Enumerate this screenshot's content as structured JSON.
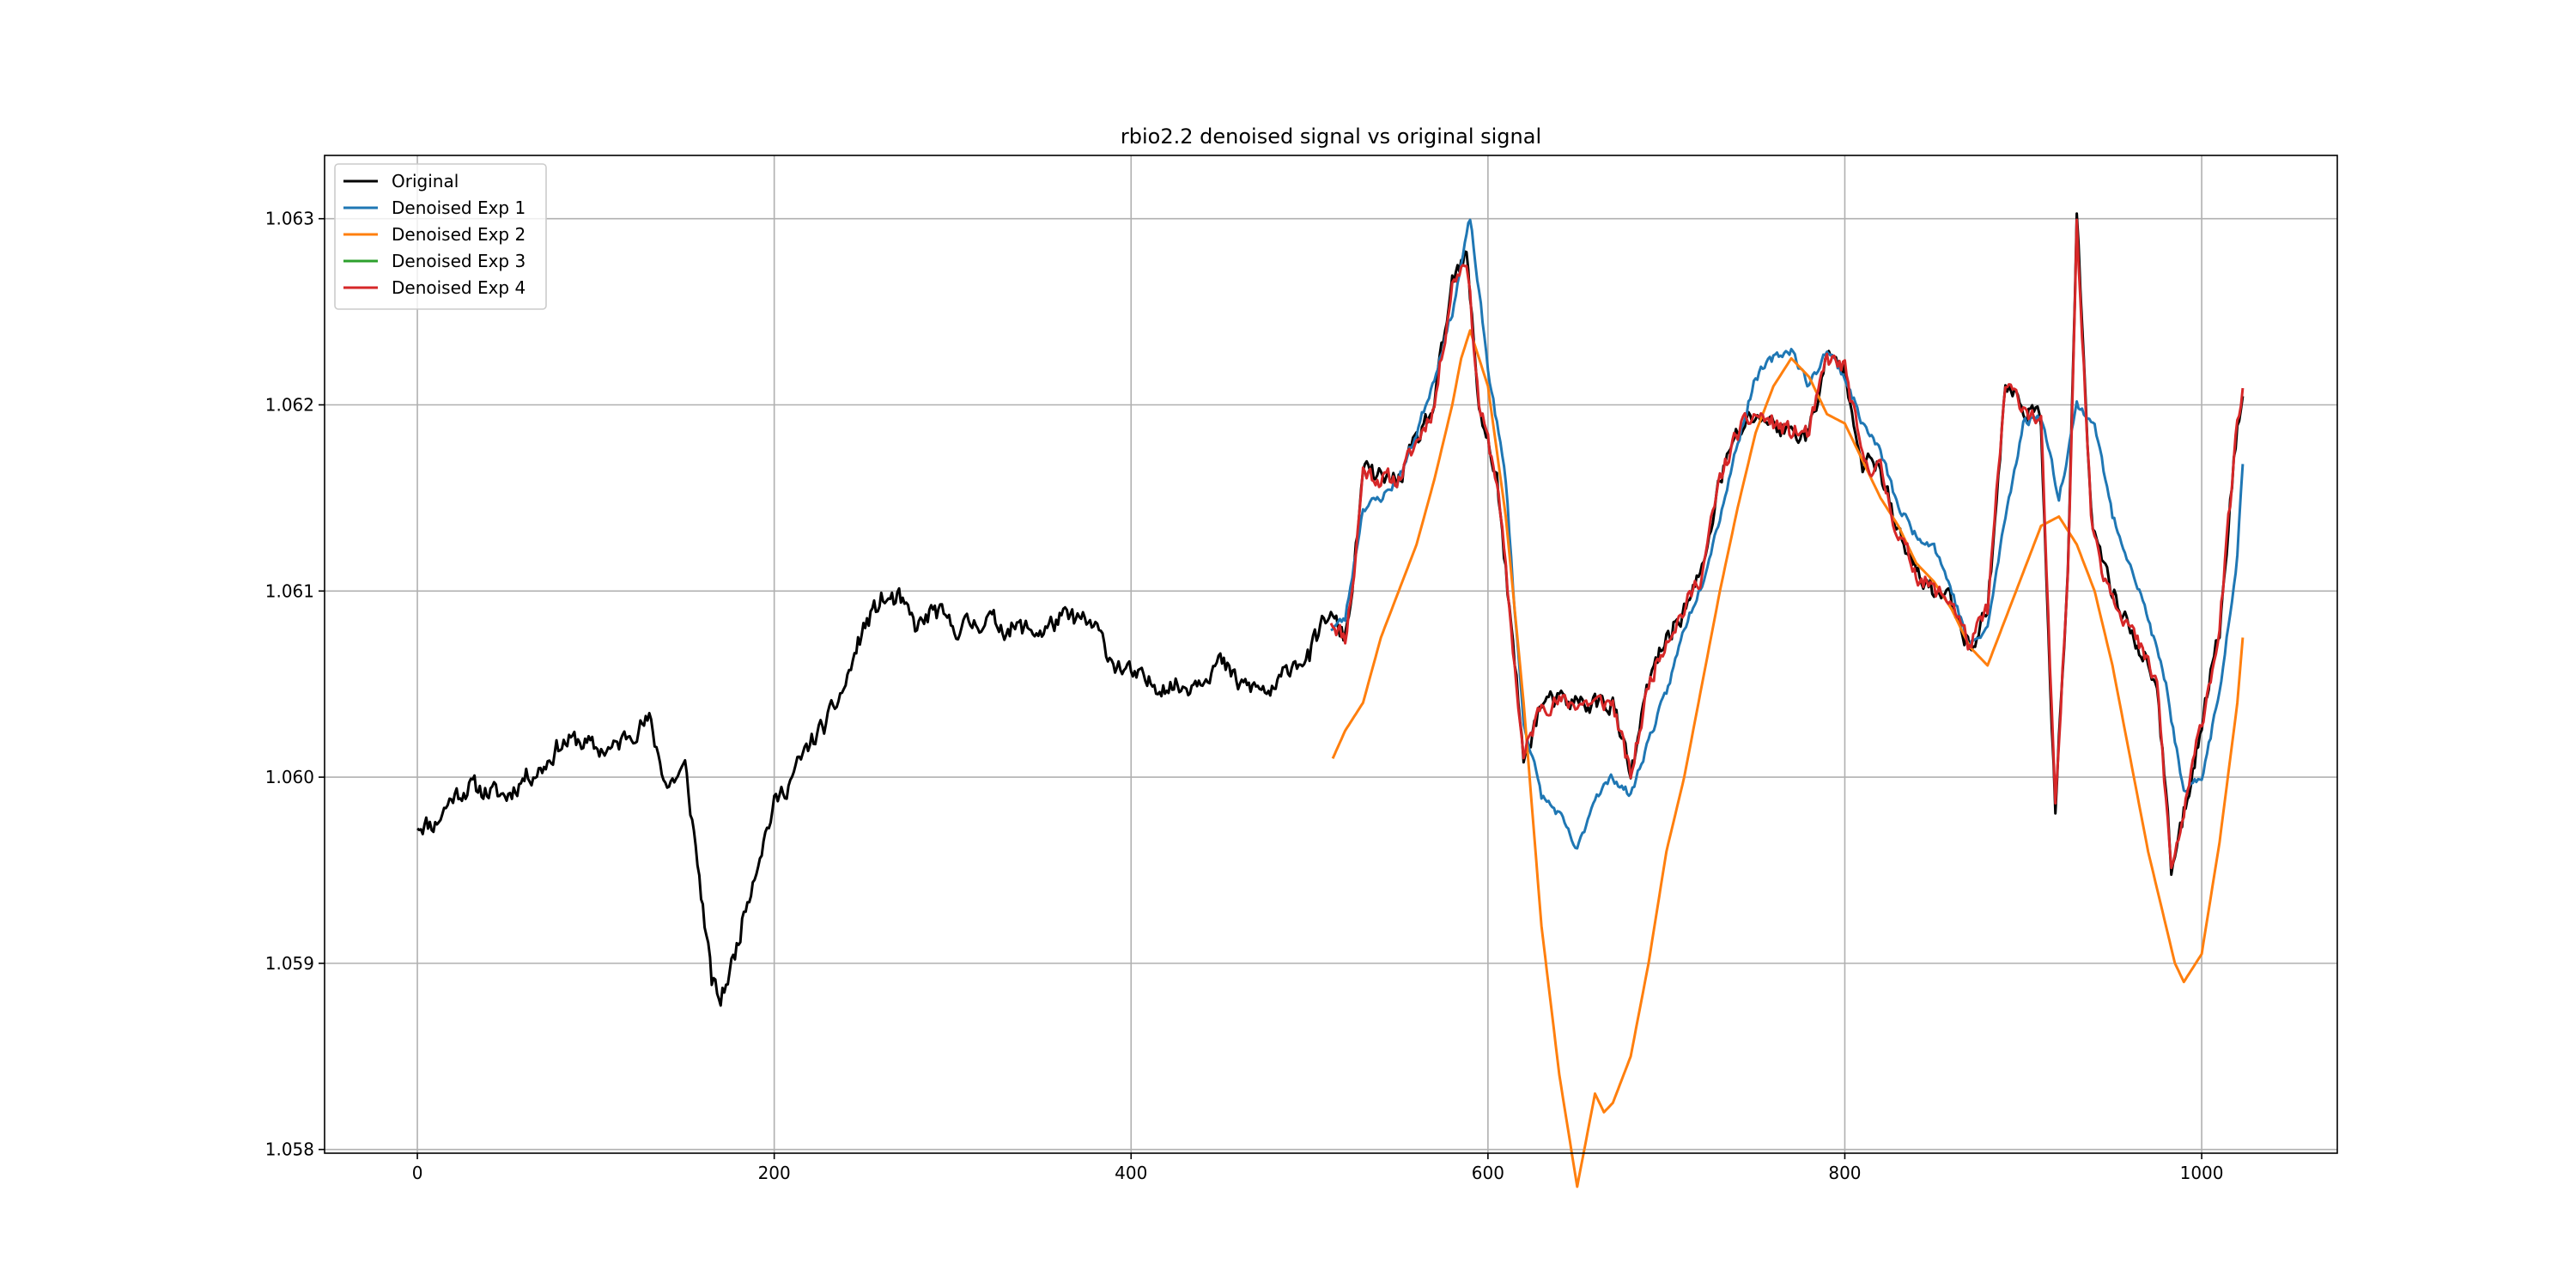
{
  "chart_data": {
    "type": "line",
    "title": "rbio2.2 denoised signal vs original signal",
    "xlabel": "",
    "ylabel": "",
    "xlim": [
      -52,
      1076
    ],
    "ylim": [
      1.05798,
      1.06334
    ],
    "x_ticks": [
      0,
      200,
      400,
      600,
      800,
      1000
    ],
    "x_tick_labels": [
      "0",
      "200",
      "400",
      "600",
      "800",
      "1000"
    ],
    "y_ticks": [
      1.058,
      1.059,
      1.06,
      1.061,
      1.062,
      1.063
    ],
    "y_tick_labels": [
      "1.058",
      "1.059",
      "1.060",
      "1.061",
      "1.062",
      "1.063"
    ],
    "grid": true,
    "legend_position": "top-left",
    "series": [
      {
        "name": "Original",
        "color": "#000000",
        "noise": 9e-05,
        "points": [
          [
            0,
            1.05975
          ],
          [
            10,
            1.05975
          ],
          [
            20,
            1.0599
          ],
          [
            30,
            1.05995
          ],
          [
            40,
            1.05992
          ],
          [
            50,
            1.0599
          ],
          [
            60,
            1.06
          ],
          [
            70,
            1.06005
          ],
          [
            80,
            1.06018
          ],
          [
            90,
            1.0602
          ],
          [
            100,
            1.06015
          ],
          [
            110,
            1.06015
          ],
          [
            120,
            1.06025
          ],
          [
            130,
            1.0603
          ],
          [
            140,
            1.05995
          ],
          [
            150,
            1.06005
          ],
          [
            155,
            1.0597
          ],
          [
            160,
            1.0593
          ],
          [
            165,
            1.0589
          ],
          [
            170,
            1.0588
          ],
          [
            178,
            1.05905
          ],
          [
            185,
            1.05935
          ],
          [
            192,
            1.0596
          ],
          [
            200,
            1.05985
          ],
          [
            210,
            1.06
          ],
          [
            220,
            1.06018
          ],
          [
            230,
            1.0603
          ],
          [
            240,
            1.0605
          ],
          [
            250,
            1.0608
          ],
          [
            260,
            1.06095
          ],
          [
            270,
            1.06095
          ],
          [
            280,
            1.0608
          ],
          [
            290,
            1.0609
          ],
          [
            300,
            1.0608
          ],
          [
            310,
            1.06082
          ],
          [
            320,
            1.06085
          ],
          [
            330,
            1.0608
          ],
          [
            340,
            1.0608
          ],
          [
            350,
            1.06078
          ],
          [
            360,
            1.06085
          ],
          [
            370,
            1.06085
          ],
          [
            380,
            1.0608
          ],
          [
            390,
            1.06062
          ],
          [
            400,
            1.06055
          ],
          [
            410,
            1.0605
          ],
          [
            420,
            1.0605
          ],
          [
            430,
            1.06048
          ],
          [
            440,
            1.06055
          ],
          [
            450,
            1.06062
          ],
          [
            460,
            1.0605
          ],
          [
            470,
            1.06048
          ],
          [
            480,
            1.06045
          ],
          [
            490,
            1.06062
          ],
          [
            500,
            1.06065
          ],
          [
            510,
            1.06088
          ],
          [
            520,
            1.06075
          ],
          [
            525,
            1.0611
          ],
          [
            530,
            1.06165
          ],
          [
            540,
            1.0616
          ],
          [
            550,
            1.0616
          ],
          [
            560,
            1.0618
          ],
          [
            570,
            1.062
          ],
          [
            580,
            1.06265
          ],
          [
            588,
            1.0628
          ],
          [
            595,
            1.062
          ],
          [
            605,
            1.0616
          ],
          [
            612,
            1.0609
          ],
          [
            620,
            1.0601
          ],
          [
            630,
            1.0604
          ],
          [
            640,
            1.0604
          ],
          [
            650,
            1.0604
          ],
          [
            660,
            1.0604
          ],
          [
            670,
            1.0604
          ],
          [
            680,
            1.06
          ],
          [
            690,
            1.0605
          ],
          [
            700,
            1.06075
          ],
          [
            710,
            1.0609
          ],
          [
            720,
            1.0611
          ],
          [
            730,
            1.0616
          ],
          [
            740,
            1.06185
          ],
          [
            750,
            1.06195
          ],
          [
            760,
            1.0619
          ],
          [
            770,
            1.06185
          ],
          [
            780,
            1.06185
          ],
          [
            790,
            1.06225
          ],
          [
            800,
            1.0622
          ],
          [
            810,
            1.0617
          ],
          [
            820,
            1.06165
          ],
          [
            830,
            1.0613
          ],
          [
            840,
            1.0611
          ],
          [
            850,
            1.061
          ],
          [
            860,
            1.06095
          ],
          [
            870,
            1.0607
          ],
          [
            880,
            1.0609
          ],
          [
            890,
            1.0621
          ],
          [
            900,
            1.062
          ],
          [
            910,
            1.0619
          ],
          [
            918,
            1.0598
          ],
          [
            925,
            1.0611
          ],
          [
            930,
            1.063
          ],
          [
            938,
            1.0614
          ],
          [
            945,
            1.0611
          ],
          [
            955,
            1.0609
          ],
          [
            965,
            1.0607
          ],
          [
            975,
            1.0605
          ],
          [
            983,
            1.0595
          ],
          [
            990,
            1.0598
          ],
          [
            1000,
            1.0603
          ],
          [
            1010,
            1.0608
          ],
          [
            1020,
            1.0619
          ],
          [
            1023,
            1.0621
          ]
        ]
      },
      {
        "name": "Denoised Exp 1",
        "color": "#1f77b4",
        "noise": 4e-05,
        "points": [
          [
            512,
            1.0608
          ],
          [
            520,
            1.06085
          ],
          [
            530,
            1.06145
          ],
          [
            540,
            1.0615
          ],
          [
            550,
            1.0616
          ],
          [
            560,
            1.06185
          ],
          [
            570,
            1.06215
          ],
          [
            580,
            1.0625
          ],
          [
            590,
            1.063
          ],
          [
            600,
            1.0622
          ],
          [
            610,
            1.0616
          ],
          [
            615,
            1.0609
          ],
          [
            620,
            1.0603
          ],
          [
            630,
            1.0599
          ],
          [
            640,
            1.0598
          ],
          [
            650,
            1.0596
          ],
          [
            660,
            1.0599
          ],
          [
            670,
            1.06
          ],
          [
            680,
            1.0599
          ],
          [
            690,
            1.0602
          ],
          [
            700,
            1.06045
          ],
          [
            710,
            1.0608
          ],
          [
            720,
            1.06105
          ],
          [
            730,
            1.0614
          ],
          [
            740,
            1.0618
          ],
          [
            750,
            1.06215
          ],
          [
            760,
            1.06225
          ],
          [
            770,
            1.0623
          ],
          [
            780,
            1.0621
          ],
          [
            790,
            1.0623
          ],
          [
            800,
            1.06215
          ],
          [
            810,
            1.0619
          ],
          [
            820,
            1.06175
          ],
          [
            830,
            1.06145
          ],
          [
            840,
            1.0613
          ],
          [
            850,
            1.06125
          ],
          [
            860,
            1.061
          ],
          [
            870,
            1.0607
          ],
          [
            880,
            1.0608
          ],
          [
            890,
            1.0614
          ],
          [
            900,
            1.0619
          ],
          [
            910,
            1.06195
          ],
          [
            920,
            1.0615
          ],
          [
            930,
            1.062
          ],
          [
            940,
            1.0619
          ],
          [
            950,
            1.0614
          ],
          [
            960,
            1.06115
          ],
          [
            970,
            1.06085
          ],
          [
            980,
            1.0605
          ],
          [
            990,
            1.0599
          ],
          [
            1000,
            1.06
          ],
          [
            1010,
            1.06045
          ],
          [
            1020,
            1.0612
          ],
          [
            1023,
            1.0617
          ]
        ]
      },
      {
        "name": "Denoised Exp 2",
        "color": "#ff7f0e",
        "noise": 0,
        "points": [
          [
            513,
            1.0601
          ],
          [
            520,
            1.06025
          ],
          [
            530,
            1.0604
          ],
          [
            540,
            1.06075
          ],
          [
            550,
            1.061
          ],
          [
            560,
            1.06125
          ],
          [
            570,
            1.0616
          ],
          [
            580,
            1.062
          ],
          [
            585,
            1.06225
          ],
          [
            590,
            1.0624
          ],
          [
            600,
            1.0621
          ],
          [
            610,
            1.0614
          ],
          [
            620,
            1.0604
          ],
          [
            630,
            1.0592
          ],
          [
            640,
            1.0584
          ],
          [
            650,
            1.0578
          ],
          [
            660,
            1.0583
          ],
          [
            665,
            1.0582
          ],
          [
            670,
            1.05825
          ],
          [
            680,
            1.0585
          ],
          [
            690,
            1.059
          ],
          [
            700,
            1.0596
          ],
          [
            710,
            1.06
          ],
          [
            720,
            1.0605
          ],
          [
            730,
            1.061
          ],
          [
            740,
            1.06145
          ],
          [
            750,
            1.06185
          ],
          [
            760,
            1.0621
          ],
          [
            770,
            1.06225
          ],
          [
            780,
            1.06215
          ],
          [
            790,
            1.06195
          ],
          [
            800,
            1.0619
          ],
          [
            810,
            1.0617
          ],
          [
            820,
            1.0615
          ],
          [
            830,
            1.06135
          ],
          [
            840,
            1.06115
          ],
          [
            850,
            1.06105
          ],
          [
            860,
            1.0609
          ],
          [
            870,
            1.0607
          ],
          [
            880,
            1.0606
          ],
          [
            890,
            1.06085
          ],
          [
            900,
            1.0611
          ],
          [
            910,
            1.06135
          ],
          [
            920,
            1.0614
          ],
          [
            930,
            1.06125
          ],
          [
            940,
            1.061
          ],
          [
            950,
            1.0606
          ],
          [
            960,
            1.0601
          ],
          [
            970,
            1.0596
          ],
          [
            980,
            1.0592
          ],
          [
            985,
            1.059
          ],
          [
            990,
            1.0589
          ],
          [
            1000,
            1.05905
          ],
          [
            1010,
            1.05965
          ],
          [
            1020,
            1.0604
          ],
          [
            1023,
            1.06075
          ]
        ]
      },
      {
        "name": "Denoised Exp 3",
        "color": "#2ca02c",
        "noise": 0,
        "points": []
      },
      {
        "name": "Denoised Exp 4",
        "color": "#d62728",
        "noise": 8e-05,
        "points": [
          [
            512,
            1.06085
          ],
          [
            520,
            1.06075
          ],
          [
            525,
            1.0611
          ],
          [
            530,
            1.06165
          ],
          [
            540,
            1.0616
          ],
          [
            550,
            1.0616
          ],
          [
            560,
            1.0618
          ],
          [
            570,
            1.062
          ],
          [
            580,
            1.06265
          ],
          [
            588,
            1.0628
          ],
          [
            595,
            1.062
          ],
          [
            605,
            1.0616
          ],
          [
            612,
            1.0609
          ],
          [
            620,
            1.0601
          ],
          [
            630,
            1.0604
          ],
          [
            640,
            1.0604
          ],
          [
            650,
            1.0604
          ],
          [
            660,
            1.0604
          ],
          [
            670,
            1.0604
          ],
          [
            680,
            1.06
          ],
          [
            690,
            1.0605
          ],
          [
            700,
            1.06075
          ],
          [
            710,
            1.0609
          ],
          [
            720,
            1.0611
          ],
          [
            730,
            1.0616
          ],
          [
            740,
            1.06185
          ],
          [
            750,
            1.06195
          ],
          [
            760,
            1.0619
          ],
          [
            770,
            1.06185
          ],
          [
            780,
            1.06185
          ],
          [
            790,
            1.06225
          ],
          [
            800,
            1.0622
          ],
          [
            810,
            1.0617
          ],
          [
            820,
            1.06165
          ],
          [
            830,
            1.0613
          ],
          [
            840,
            1.0611
          ],
          [
            850,
            1.061
          ],
          [
            860,
            1.06095
          ],
          [
            870,
            1.0607
          ],
          [
            880,
            1.0609
          ],
          [
            890,
            1.0621
          ],
          [
            900,
            1.062
          ],
          [
            910,
            1.0619
          ],
          [
            918,
            1.0598
          ],
          [
            925,
            1.0611
          ],
          [
            930,
            1.063
          ],
          [
            938,
            1.0614
          ],
          [
            945,
            1.0611
          ],
          [
            955,
            1.0609
          ],
          [
            965,
            1.0607
          ],
          [
            975,
            1.0605
          ],
          [
            983,
            1.0595
          ],
          [
            990,
            1.0598
          ],
          [
            1000,
            1.0603
          ],
          [
            1010,
            1.0608
          ],
          [
            1020,
            1.0619
          ],
          [
            1023,
            1.0621
          ]
        ]
      }
    ]
  }
}
